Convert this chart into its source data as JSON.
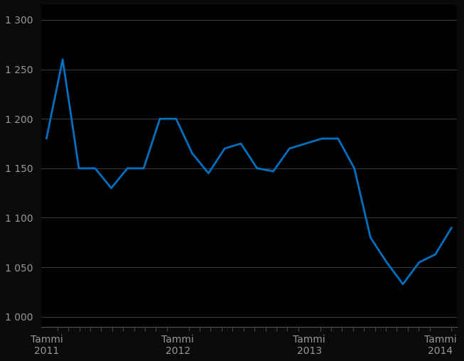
{
  "y_values": [
    1180,
    1260,
    1150,
    1150,
    1130,
    1150,
    1150,
    1200,
    1200,
    1165,
    1145,
    1170,
    1175,
    1150,
    1147,
    1170,
    1175,
    1180,
    1180,
    1150,
    1080,
    1055,
    1033,
    1055,
    1063,
    1090
  ],
  "n_months": 37,
  "tick_month_indices": [
    0,
    12,
    24,
    36
  ],
  "tick_labels": [
    "Tammi\n2011",
    "Tammi\n2012",
    "Tammi\n2013",
    "Tammi\n2014"
  ],
  "ytick_values": [
    1000,
    1050,
    1100,
    1150,
    1200,
    1250,
    1300
  ],
  "ytick_labels": [
    "1 000",
    "1 050",
    "1 100",
    "1 150",
    "1 200",
    "1 250",
    "1 300"
  ],
  "ylim": [
    990,
    1315
  ],
  "line_color": "#0070c0",
  "line_width": 2.0,
  "background_color": "#0a0a0a",
  "plot_bg_color": "#000000",
  "grid_color": "#3a3a4a",
  "text_color": "#999999",
  "spine_color": "#555555"
}
